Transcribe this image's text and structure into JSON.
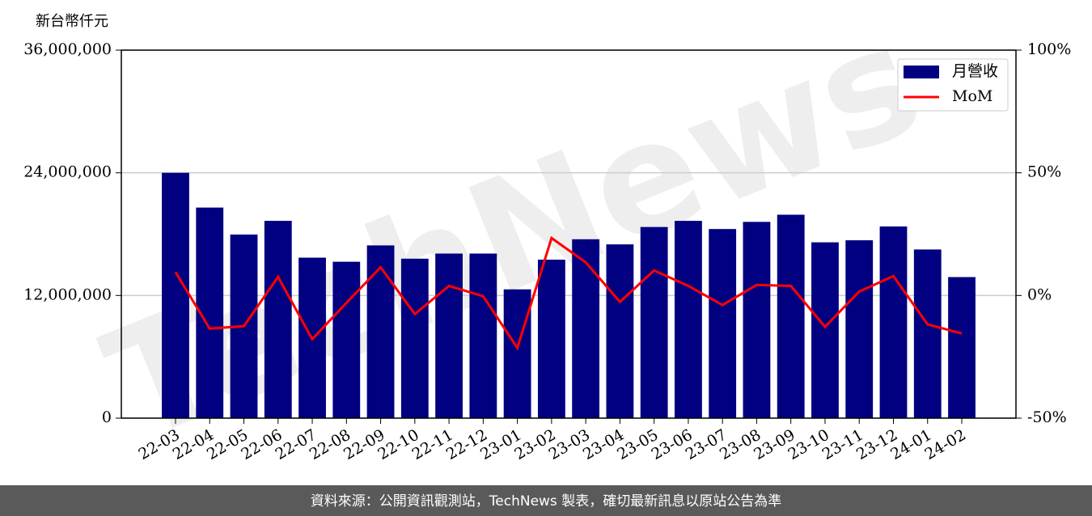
{
  "chart_data": {
    "type": "bar",
    "y_label": "新台幣仟元",
    "watermark": "TechNews",
    "categories": [
      "22-03",
      "22-04",
      "22-05",
      "22-06",
      "22-07",
      "22-08",
      "22-09",
      "22-10",
      "22-11",
      "22-12",
      "23-01",
      "23-02",
      "23-03",
      "23-04",
      "23-05",
      "23-06",
      "23-07",
      "23-08",
      "23-09",
      "23-10",
      "23-11",
      "23-12",
      "24-01",
      "24-02"
    ],
    "series": [
      {
        "name": "月營收",
        "type": "bar",
        "axis": "y",
        "color": "#000080",
        "values": [
          24000000,
          20600000,
          17960000,
          19300000,
          15700000,
          15300000,
          16900000,
          15600000,
          16100000,
          16100000,
          12600000,
          15500000,
          17500000,
          17000000,
          18700000,
          19300000,
          18500000,
          19200000,
          19900000,
          17200000,
          17400000,
          18750000,
          16500000,
          13800000
        ]
      },
      {
        "name": "MoM",
        "type": "line",
        "axis": "y2",
        "color": "#ff0000",
        "values": [
          9.5,
          -13.5,
          -12.5,
          7.6,
          -17.8,
          -3,
          11.5,
          -7.6,
          3.9,
          -0.3,
          -21.4,
          23.4,
          13.5,
          -2.6,
          10.2,
          3.9,
          -3.9,
          4.3,
          3.9,
          -12.8,
          1.6,
          7.9,
          -11.8,
          -15.5
        ]
      }
    ],
    "ylim": [
      0,
      36000000
    ],
    "yticks": [
      0,
      {
        "value": 12000000,
        "label": "12,000,000"
      },
      {
        "value": 24000000,
        "label": "24,000,000"
      },
      {
        "value": 36000000,
        "label": "36,000,000"
      }
    ],
    "y2lim": [
      -50,
      100
    ],
    "y2ticks": [
      {
        "value": -50,
        "label": "-50%"
      },
      {
        "value": 0,
        "label": "0%"
      },
      {
        "value": 50,
        "label": "50%"
      },
      {
        "value": 100,
        "label": "100%"
      }
    ],
    "grid": true,
    "legend": "upper right"
  },
  "footer": "資料來源：公開資訊觀測站，TechNews 製表，確切最新訊息以原站公告為準"
}
